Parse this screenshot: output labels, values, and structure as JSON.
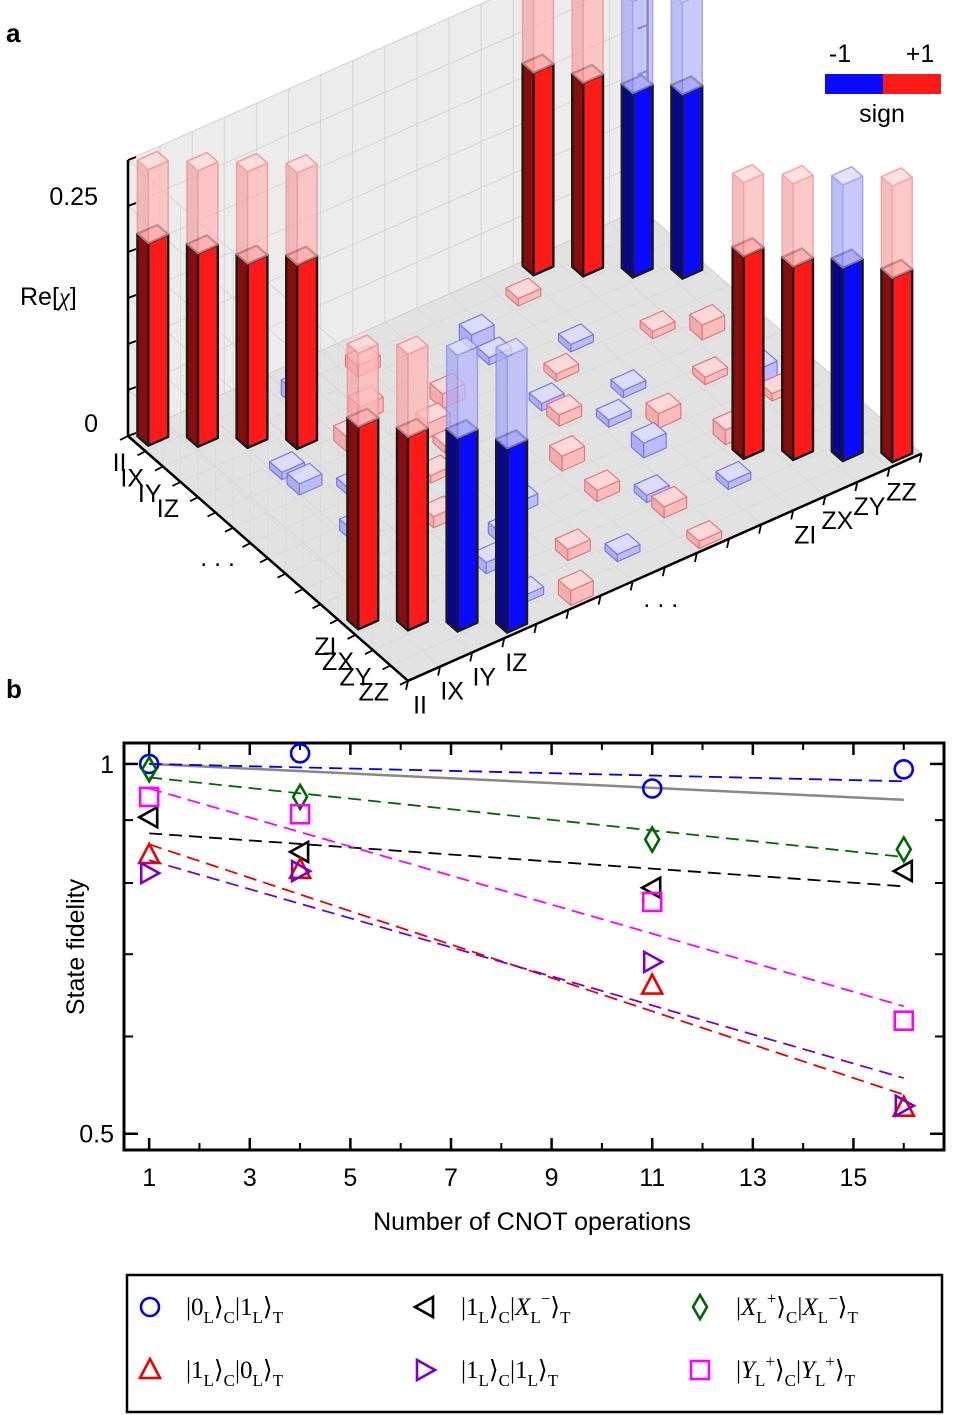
{
  "panels": {
    "a": "a",
    "b": "b"
  },
  "chart_data": [
    {
      "type": "bar3d",
      "panel": "a",
      "zlabel": "Re[χ]",
      "zlabel_pre": "Re[",
      "zlabel_sym": "χ",
      "zlabel_post": "]",
      "zticks": [
        "0.25",
        "0"
      ],
      "zlim": [
        0,
        0.3
      ],
      "row_tick_labels": [
        "II",
        "IX",
        "IY",
        "IZ",
        ". . .",
        "ZI",
        "ZX",
        "ZY",
        "ZZ"
      ],
      "col_tick_labels": [
        "II",
        "IX",
        "IY",
        "IZ",
        ". . .",
        "ZI",
        "ZX",
        "ZY",
        "ZZ"
      ],
      "colorbar": {
        "label": "sign",
        "min_label": "-1",
        "max_label": "+1",
        "negative_color": "#0a0aff",
        "positive_color": "#ff1a1a"
      },
      "ideal_value": 0.25,
      "measured_blocks": [
        {
          "block": "II-IZ x II-IZ",
          "values": [
            0.22,
            0.21,
            0.2,
            0.2
          ],
          "signs": [
            1,
            1,
            1,
            1
          ]
        },
        {
          "block": "II-IZ x ZI-ZZ",
          "values": [
            0.22,
            0.21,
            0.2,
            0.2
          ],
          "signs": [
            1,
            1,
            -1,
            -1
          ]
        },
        {
          "block": "ZI-ZZ x II-IZ",
          "values": [
            0.22,
            0.21,
            0.21,
            0.2
          ],
          "signs": [
            1,
            1,
            -1,
            -1
          ]
        },
        {
          "block": "ZI-ZZ x ZI-ZZ",
          "values": [
            0.22,
            0.21,
            0.21,
            0.2
          ],
          "signs": [
            1,
            1,
            -1,
            1
          ]
        }
      ]
    },
    {
      "type": "scatter",
      "panel": "b",
      "xlabel": "Number of CNOT operations",
      "ylabel": "State fidelity",
      "yscale": "log",
      "xlim": [
        0.5,
        16.8
      ],
      "ylim": [
        0.485,
        1.04
      ],
      "xticks": [
        1,
        3,
        5,
        7,
        9,
        11,
        13,
        15
      ],
      "yticks": [
        0.5,
        1
      ],
      "ytick_labels": [
        "0.5",
        "1"
      ],
      "minor_yticks": [
        0.6,
        0.7,
        0.8,
        0.9
      ],
      "series": [
        {
          "name": "|0L⟩C|1L⟩T",
          "legend_parts": [
            "|0",
            "L",
            "⟩",
            "C",
            "|1",
            "L",
            "⟩",
            "T"
          ],
          "marker": "circle",
          "color": "#0000ee",
          "x": [
            1,
            4,
            11,
            16
          ],
          "y": [
            1.0,
            1.02,
            0.955,
            0.99
          ],
          "fit": [
            1.0,
            0.968
          ]
        },
        {
          "name": "|1L⟩C|XL−⟩T",
          "legend_parts": [
            "|1",
            "L",
            "⟩",
            "C",
            "|X",
            "L",
            "−",
            "⟩",
            "T"
          ],
          "marker": "triangle-left",
          "color": "#000000",
          "x": [
            1,
            4,
            11,
            16
          ],
          "y": [
            0.905,
            0.848,
            0.793,
            0.818
          ],
          "fit": [
            0.878,
            0.795
          ]
        },
        {
          "name": "|XL+⟩C|XL−⟩T",
          "legend_parts": [
            "|X",
            "L",
            "+",
            "⟩",
            "C",
            "|X",
            "L",
            "−",
            "⟩",
            "T"
          ],
          "marker": "diamond",
          "color": "#006600",
          "x": [
            1,
            4,
            11,
            16
          ],
          "y": [
            0.99,
            0.94,
            0.868,
            0.852
          ],
          "fit": [
            0.975,
            0.84
          ]
        },
        {
          "name": "|1L⟩C|0L⟩T",
          "legend_parts": [
            "|1",
            "L",
            "⟩",
            "C",
            "|0",
            "L",
            "⟩",
            "T"
          ],
          "marker": "triangle-up",
          "color": "#ee0000",
          "x": [
            1,
            4,
            11,
            16
          ],
          "y": [
            0.843,
            0.82,
            0.66,
            0.525
          ],
          "fit": [
            0.86,
            0.538
          ]
        },
        {
          "name": "|1L⟩C|1L⟩T",
          "legend_parts": [
            "|1",
            "L",
            "⟩",
            "C",
            "|1",
            "L",
            "⟩",
            "T"
          ],
          "marker": "triangle-right",
          "color": "#7700cc",
          "x": [
            1,
            4,
            11,
            16
          ],
          "y": [
            0.815,
            0.818,
            0.69,
            0.527
          ],
          "fit": [
            0.835,
            0.555
          ]
        },
        {
          "name": "|YL+⟩C|YL+⟩T",
          "legend_parts": [
            "|Y",
            "L",
            "+",
            "⟩",
            "C",
            "|Y",
            "L",
            "+",
            "⟩",
            "T"
          ],
          "marker": "square",
          "color": "#ff00ff",
          "x": [
            1,
            4,
            11,
            16
          ],
          "y": [
            0.94,
            0.91,
            0.772,
            0.618
          ],
          "fit": [
            0.955,
            0.635
          ]
        }
      ],
      "reference_line": {
        "color": "#888888",
        "x": [
          1,
          16
        ],
        "y": [
          1.0,
          0.935
        ]
      }
    }
  ]
}
